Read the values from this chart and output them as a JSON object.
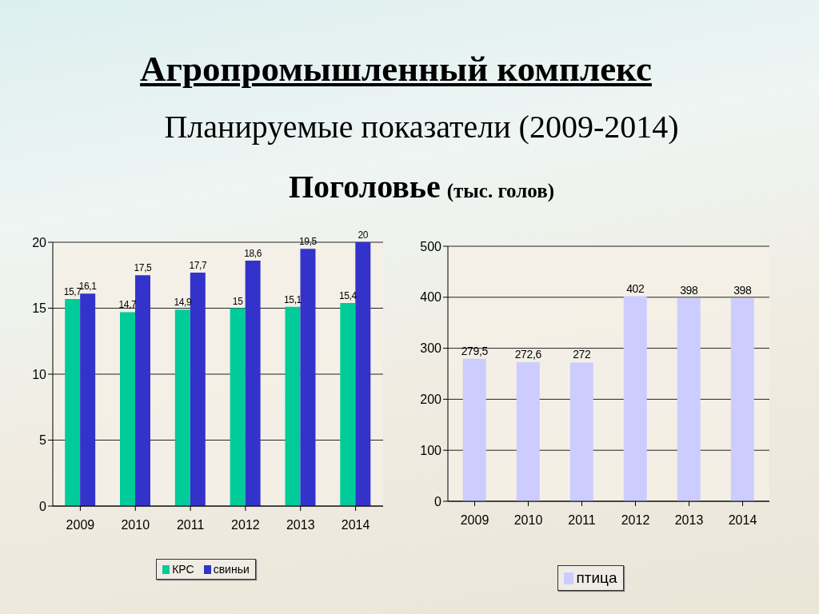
{
  "chart_data": [
    {
      "type": "bar",
      "title": "Агропромышленный комплекс",
      "subtitle": "Планируемые показатели (2009-2014)",
      "annotations": [
        "Поголовье",
        "(тыс. голов)"
      ],
      "categories": [
        "2009",
        "2010",
        "2011",
        "2012",
        "2013",
        "2014"
      ],
      "series": [
        {
          "name": "КРС",
          "color": "#00cc99",
          "values": [
            15.7,
            14.7,
            14.9,
            15,
            15.1,
            15.4
          ],
          "value_labels": [
            "15,7",
            "14,7",
            "14,9",
            "15",
            "15,1",
            "15,4"
          ]
        },
        {
          "name": "свиньи",
          "color": "#3333cc",
          "values": [
            16.1,
            17.5,
            17.7,
            18.6,
            19.5,
            20
          ],
          "value_labels": [
            "16,1",
            "17,5",
            "17,7",
            "18,6",
            "19,5",
            "20"
          ]
        }
      ],
      "ylim": [
        0,
        20
      ],
      "yticks": [
        0,
        5,
        10,
        15,
        20
      ],
      "grid": "y",
      "legend": "bottom"
    },
    {
      "type": "bar",
      "categories": [
        "2009",
        "2010",
        "2011",
        "2012",
        "2013",
        "2014"
      ],
      "series": [
        {
          "name": "птица",
          "color": "#ccccff",
          "values": [
            279.5,
            272.6,
            272,
            402,
            398,
            398
          ],
          "value_labels": [
            "279,5",
            "272,6",
            "272",
            "402",
            "398",
            "398"
          ]
        }
      ],
      "ylim": [
        0,
        500
      ],
      "yticks": [
        0,
        100,
        200,
        300,
        400,
        500
      ],
      "grid": "y",
      "legend": "bottom"
    }
  ]
}
